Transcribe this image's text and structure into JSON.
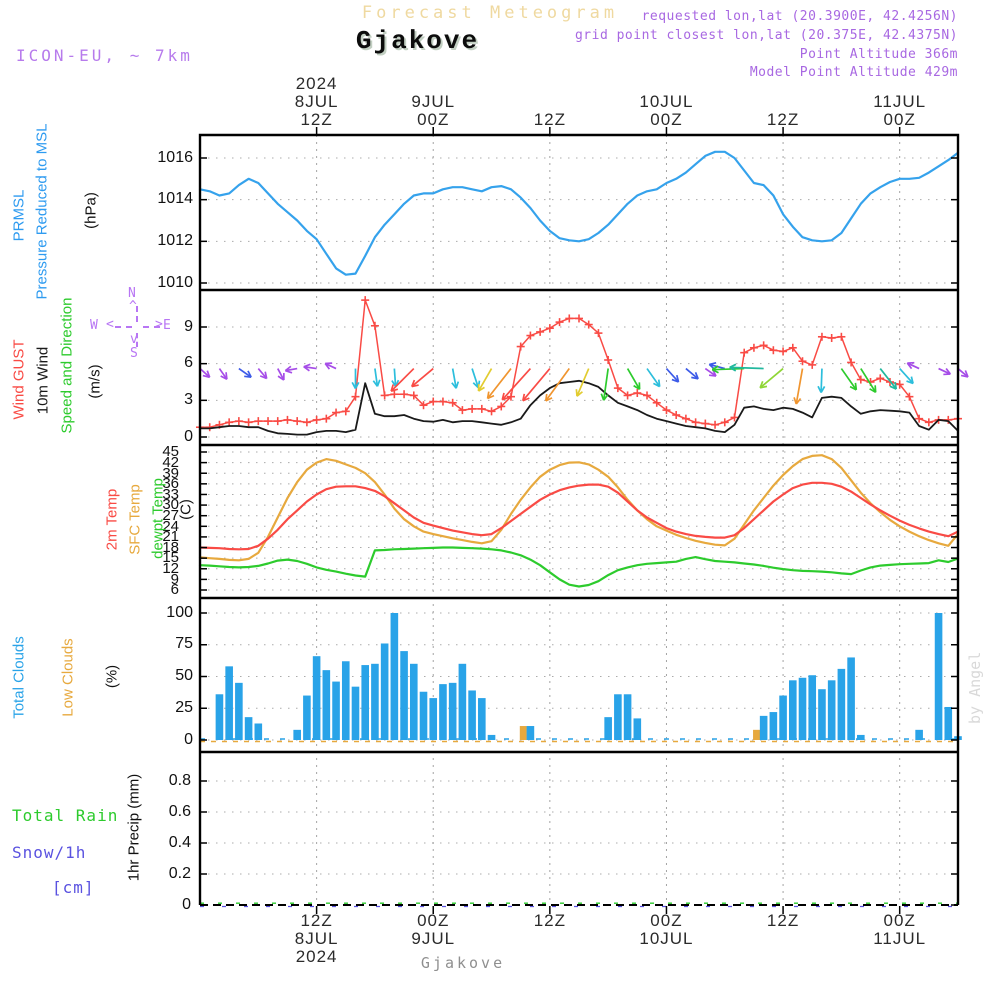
{
  "header": {
    "plot_title": "Forecast Meteogram",
    "station_title": "Gjakove",
    "requested_line": "requested lon,lat (20.3900E, 42.4256N)",
    "grid_point_line": "grid point closest lon,lat (20.375E, 42.4375N)",
    "point_altitude_line": "Point Altitude 366m",
    "model_altitude_line": "Model Point Altitude 429m",
    "model_line": "ICON-EU, ~ 7km",
    "watermark": "by Angel",
    "footer_station": "Gjakove"
  },
  "colors": {
    "pressure_line": "#35A2EC",
    "label_blue": "#2E9BF0",
    "gust_red": "#F94B45",
    "wind_black": "#1A1A1A",
    "green": "#2DCB2D",
    "sfc_orange": "#E7A93E",
    "cloud_blue": "#29A3E8",
    "snow_blue": "#5A52E0",
    "purple_text": "#A868E2",
    "icon_purple": "#B77BEC",
    "compass_purple": "#B876F4",
    "title_wheat": "#EFD9A0",
    "footer_gray": "#8F8F8F",
    "watermark_gray": "#D9D9D9",
    "grid_gray": "#A3A3A3",
    "arrow_palette": {
      "purple": "#A64DE8",
      "blue": "#3D5BE8",
      "cyan": "#2CBEDC",
      "teal": "#21B89E",
      "green": "#2DCB2D",
      "lightgreen": "#8FD636",
      "yellow": "#E2CC30",
      "orange": "#F0952F",
      "red": "#F94B45"
    }
  },
  "time": {
    "start": "8JUL 2024 00Z",
    "hours": 78,
    "ticks": [
      {
        "h": 12,
        "z": "12Z",
        "date": "8JUL",
        "year": "2024"
      },
      {
        "h": 24,
        "z": "00Z",
        "date": "9JUL",
        "year": ""
      },
      {
        "h": 36,
        "z": "12Z",
        "date": "",
        "year": ""
      },
      {
        "h": 48,
        "z": "00Z",
        "date": "10JUL",
        "year": ""
      },
      {
        "h": 60,
        "z": "12Z",
        "date": "",
        "year": ""
      },
      {
        "h": 72,
        "z": "00Z",
        "date": "11JUL",
        "year": ""
      }
    ]
  },
  "chart_data": [
    {
      "id": "pressure",
      "type": "line",
      "left_labels": [
        "PRMSL",
        "Pressure Reduced to MSL"
      ],
      "unit": "(hPa)",
      "ylim": [
        1009.6,
        1017.2
      ],
      "yticks": [
        1016,
        1014,
        1012,
        1010
      ],
      "grid": true,
      "series": [
        {
          "name": "PRMSL",
          "color": "#35A2EC",
          "values": [
            1014.5,
            1014.4,
            1014.2,
            1014.3,
            1014.7,
            1015.0,
            1014.8,
            1014.3,
            1013.8,
            1013.4,
            1013.0,
            1012.5,
            1012.1,
            1011.4,
            1010.7,
            1010.4,
            1010.45,
            1011.3,
            1012.2,
            1012.8,
            1013.3,
            1013.8,
            1014.2,
            1014.3,
            1014.3,
            1014.5,
            1014.6,
            1014.6,
            1014.5,
            1014.4,
            1014.6,
            1014.65,
            1014.5,
            1014.1,
            1013.6,
            1013.0,
            1012.5,
            1012.15,
            1012.05,
            1012.0,
            1012.1,
            1012.4,
            1012.8,
            1013.3,
            1013.8,
            1014.2,
            1014.4,
            1014.5,
            1014.8,
            1015.0,
            1015.3,
            1015.7,
            1016.1,
            1016.3,
            1016.3,
            1016.0,
            1015.4,
            1014.8,
            1014.7,
            1014.2,
            1013.3,
            1012.7,
            1012.2,
            1012.05,
            1012.0,
            1012.05,
            1012.4,
            1013.1,
            1013.8,
            1014.3,
            1014.6,
            1014.85,
            1015.0,
            1015.0,
            1015.05,
            1015.3,
            1015.6,
            1015.9,
            1016.25
          ]
        }
      ]
    },
    {
      "id": "wind",
      "type": "line",
      "left_labels": [
        "Wind GUST",
        "10m Wind",
        "Speed and Direction"
      ],
      "unit": "(m/s)",
      "ylim": [
        0,
        12
      ],
      "yticks": [
        9,
        6,
        3,
        0
      ],
      "grid": true,
      "compass": {
        "n": "N",
        "s": "S",
        "e": "E",
        "w": "W"
      },
      "series": [
        {
          "name": "Wind GUST",
          "color": "#F94B45",
          "marker": "plus",
          "values": [
            0.8,
            0.8,
            1.0,
            1.2,
            1.3,
            1.2,
            1.3,
            1.3,
            1.3,
            1.4,
            1.3,
            1.2,
            1.4,
            1.5,
            2.0,
            2.1,
            3.3,
            11.2,
            9.1,
            3.4,
            3.5,
            3.5,
            3.4,
            2.6,
            2.9,
            2.9,
            2.8,
            2.2,
            2.3,
            2.3,
            2.1,
            2.5,
            3.3,
            7.4,
            8.3,
            8.6,
            8.9,
            9.4,
            9.7,
            9.7,
            9.2,
            8.5,
            6.3,
            4.0,
            3.4,
            3.6,
            3.4,
            2.8,
            2.2,
            1.8,
            1.5,
            1.2,
            1.1,
            1.0,
            1.2,
            1.6,
            6.9,
            7.3,
            7.5,
            7.1,
            7.0,
            7.3,
            6.2,
            5.9,
            8.2,
            8.1,
            8.2,
            6.1,
            4.7,
            4.5,
            4.8,
            4.5,
            4.3,
            3.3,
            1.5,
            1.2,
            1.4,
            1.4,
            1.5
          ]
        },
        {
          "name": "10m Wind",
          "color": "#1A1A1A",
          "values": [
            0.7,
            0.7,
            0.8,
            0.9,
            0.9,
            0.8,
            0.8,
            0.5,
            0.3,
            0.25,
            0.2,
            0.2,
            0.4,
            0.5,
            0.5,
            0.4,
            0.6,
            4.4,
            1.9,
            1.7,
            1.7,
            1.8,
            1.5,
            1.3,
            1.25,
            1.4,
            1.2,
            1.3,
            1.3,
            1.2,
            1.1,
            1.0,
            1.2,
            1.5,
            2.6,
            3.4,
            4.0,
            4.4,
            4.5,
            4.6,
            4.4,
            4.1,
            3.4,
            2.8,
            2.5,
            2.2,
            1.8,
            1.5,
            1.3,
            1.1,
            0.9,
            0.8,
            0.7,
            0.5,
            0.4,
            1.0,
            2.4,
            2.5,
            2.3,
            2.2,
            2.4,
            2.3,
            2.0,
            1.6,
            3.2,
            3.3,
            3.2,
            2.5,
            1.9,
            2.1,
            2.2,
            2.15,
            2.1,
            2.0,
            0.9,
            0.6,
            1.4,
            1.3,
            0.5
          ]
        }
      ],
      "arrows": {
        "anchor_mps": 5.6,
        "note": "wind direction arrows [hour, color, angle_deg_cw_from_east, length_px]",
        "items": [
          [
            0,
            "purple",
            42,
            13
          ],
          [
            2,
            "purple",
            55,
            13
          ],
          [
            4,
            "blue",
            35,
            15
          ],
          [
            6,
            "purple",
            50,
            13
          ],
          [
            8,
            "purple",
            62,
            13
          ],
          [
            10,
            "purple",
            170,
            12
          ],
          [
            12,
            "purple",
            188,
            13
          ],
          [
            14,
            "purple",
            205,
            12
          ],
          [
            16,
            "cyan",
            90,
            20
          ],
          [
            18,
            "cyan",
            82,
            18
          ],
          [
            20,
            "cyan",
            86,
            18
          ],
          [
            22,
            "red",
            135,
            32
          ],
          [
            24,
            "red",
            140,
            28
          ],
          [
            26,
            "cyan",
            80,
            20
          ],
          [
            28,
            "cyan",
            72,
            20
          ],
          [
            30,
            "yellow",
            120,
            26
          ],
          [
            32,
            "orange",
            128,
            38
          ],
          [
            34,
            "red",
            132,
            42
          ],
          [
            36,
            "red",
            130,
            42
          ],
          [
            38,
            "orange",
            126,
            40
          ],
          [
            40,
            "yellow",
            113,
            30
          ],
          [
            42,
            "green",
            98,
            32
          ],
          [
            44,
            "green",
            60,
            24
          ],
          [
            46,
            "cyan",
            55,
            22
          ],
          [
            48,
            "blue",
            48,
            18
          ],
          [
            50,
            "blue",
            40,
            16
          ],
          [
            52,
            "purple",
            35,
            13
          ],
          [
            54,
            "blue",
            195,
            16
          ],
          [
            56,
            "green",
            178,
            32
          ],
          [
            58,
            "teal",
            182,
            34
          ],
          [
            60,
            "lightgreen",
            140,
            30
          ],
          [
            62,
            "orange",
            100,
            36
          ],
          [
            64,
            "cyan",
            92,
            24
          ],
          [
            66,
            "green",
            55,
            26
          ],
          [
            68,
            "green",
            58,
            28
          ],
          [
            70,
            "teal",
            52,
            26
          ],
          [
            72,
            "cyan",
            48,
            20
          ],
          [
            74,
            "purple",
            205,
            13
          ],
          [
            76,
            "purple",
            25,
            13
          ],
          [
            78,
            "purple",
            40,
            13
          ]
        ]
      }
    },
    {
      "id": "temp",
      "type": "line",
      "left_labels": [
        "2m Temp",
        "SFC Temp",
        "dewpt Temp"
      ],
      "unit": "(C)",
      "ylim": [
        4.5,
        45.8
      ],
      "yticks": [
        45,
        42,
        39,
        36,
        33,
        30,
        27,
        24,
        21,
        18,
        15,
        12,
        9,
        6
      ],
      "grid": true,
      "series": [
        {
          "name": "2m Temp",
          "color": "#F94B45",
          "values": [
            18.0,
            17.9,
            17.8,
            17.6,
            17.5,
            17.6,
            18.5,
            20.5,
            23.0,
            26.0,
            28.5,
            31.0,
            33.0,
            34.5,
            35.2,
            35.3,
            35.3,
            34.8,
            34.0,
            32.5,
            30.5,
            28.5,
            26.5,
            25.0,
            24.2,
            23.5,
            22.8,
            22.3,
            21.8,
            21.5,
            21.8,
            23.5,
            25.5,
            27.5,
            29.5,
            31.5,
            33.0,
            34.2,
            35.0,
            35.5,
            35.8,
            35.8,
            35.2,
            33.5,
            31.0,
            28.5,
            26.5,
            25.0,
            23.5,
            22.5,
            21.8,
            21.3,
            21.0,
            20.8,
            20.8,
            21.5,
            23.5,
            26.0,
            28.5,
            31.0,
            33.0,
            34.8,
            35.8,
            36.3,
            36.3,
            36.0,
            35.2,
            33.8,
            32.0,
            30.2,
            28.5,
            27.0,
            25.6,
            24.4,
            23.4,
            22.5,
            21.8,
            21.2,
            22.5
          ]
        },
        {
          "name": "SFC Temp",
          "color": "#E7A93E",
          "values": [
            15.2,
            15.0,
            14.8,
            14.5,
            14.4,
            14.8,
            16.5,
            21.0,
            26.5,
            32.0,
            36.5,
            40.0,
            42.0,
            43.0,
            42.5,
            41.5,
            40.5,
            39.0,
            36.5,
            33.0,
            29.0,
            26.0,
            24.0,
            22.5,
            21.8,
            21.2,
            20.6,
            20.1,
            19.6,
            19.2,
            19.8,
            23.0,
            27.5,
            31.5,
            35.0,
            38.0,
            40.0,
            41.3,
            42.0,
            42.1,
            41.5,
            40.0,
            38.0,
            35.0,
            31.5,
            28.5,
            26.0,
            24.0,
            22.8,
            21.6,
            20.7,
            19.9,
            19.3,
            18.8,
            18.6,
            20.5,
            24.5,
            28.5,
            32.0,
            35.5,
            38.5,
            41.0,
            43.0,
            43.9,
            44.1,
            43.0,
            40.5,
            37.0,
            33.5,
            30.5,
            28.0,
            25.8,
            24.0,
            22.5,
            21.2,
            20.1,
            19.2,
            18.5,
            21.8
          ]
        },
        {
          "name": "dewpt Temp",
          "color": "#2DCB2D",
          "values": [
            13.0,
            12.9,
            12.7,
            12.5,
            12.4,
            12.5,
            12.8,
            13.5,
            14.3,
            14.6,
            14.2,
            13.4,
            12.4,
            11.7,
            11.2,
            10.6,
            10.1,
            9.8,
            17.2,
            17.3,
            17.5,
            17.6,
            17.7,
            17.8,
            17.9,
            18.0,
            18.0,
            17.9,
            17.8,
            17.7,
            17.5,
            17.2,
            16.6,
            15.8,
            14.6,
            13.0,
            11.0,
            9.0,
            7.5,
            7.0,
            7.4,
            8.5,
            10.2,
            11.6,
            12.4,
            13.0,
            13.4,
            13.6,
            13.8,
            14.0,
            14.8,
            15.3,
            14.7,
            14.2,
            14.0,
            13.8,
            13.5,
            13.2,
            12.8,
            12.3,
            11.9,
            11.6,
            11.4,
            11.3,
            11.2,
            11.0,
            10.7,
            10.5,
            11.5,
            12.4,
            12.9,
            13.1,
            13.3,
            13.4,
            13.5,
            13.6,
            14.4,
            13.9,
            14.9
          ]
        }
      ]
    },
    {
      "id": "clouds",
      "type": "bar",
      "left_labels": [
        "Total Clouds",
        "Low Clouds"
      ],
      "unit": "(%)",
      "ylim": [
        0,
        110
      ],
      "yticks": [
        100,
        75,
        50,
        25,
        0
      ],
      "grid": true,
      "series": [
        {
          "name": "Total Clouds",
          "color": "#29A3E8",
          "values": [
            0,
            0,
            36,
            58,
            45,
            18,
            13,
            0,
            0,
            0,
            8,
            35,
            66,
            55,
            46,
            62,
            42,
            59,
            60,
            76,
            100,
            70,
            60,
            38,
            33,
            44,
            45,
            60,
            39,
            33,
            4,
            0,
            0,
            0,
            11,
            0,
            0,
            0,
            0,
            0,
            0,
            0,
            18,
            36,
            36,
            17,
            0,
            0,
            0,
            0,
            0,
            0,
            0,
            0,
            0,
            0,
            0,
            0,
            19,
            22,
            35,
            47,
            49,
            51,
            40,
            47,
            56,
            65,
            4,
            0,
            0,
            0,
            0,
            0,
            8,
            0,
            100,
            26,
            3
          ]
        },
        {
          "name": "Low Clouds",
          "color": "#E7A93E",
          "values": [
            0,
            0,
            0,
            0,
            0,
            0,
            0,
            0,
            0,
            0,
            0,
            0,
            0,
            0,
            0,
            0,
            0,
            0,
            0,
            0,
            0,
            0,
            0,
            0,
            0,
            0,
            0,
            0,
            0,
            0,
            0,
            0,
            0,
            0,
            11,
            0,
            0,
            0,
            0,
            0,
            0,
            0,
            0,
            0,
            0,
            0,
            0,
            0,
            0,
            0,
            0,
            0,
            0,
            0,
            0,
            0,
            0,
            0,
            8,
            0,
            0,
            0,
            0,
            0,
            0,
            0,
            0,
            0,
            0,
            0,
            0,
            0,
            0,
            0,
            0,
            0,
            0,
            0,
            0
          ]
        }
      ]
    },
    {
      "id": "precip",
      "type": "bar",
      "left_labels": [
        "Total  Rain",
        "Snow/1h",
        "[cm]"
      ],
      "unit": "1hr Precip (mm)",
      "ylim": [
        0,
        1.0
      ],
      "yticks": [
        0.8,
        0.6,
        0.4,
        0.2,
        0
      ],
      "grid": true,
      "series": [
        {
          "name": "Total Rain",
          "color": "#2DCB2D",
          "values_constant": 0
        },
        {
          "name": "Snow/1h",
          "color": "#5A52E0",
          "values_constant": 0
        }
      ]
    }
  ]
}
